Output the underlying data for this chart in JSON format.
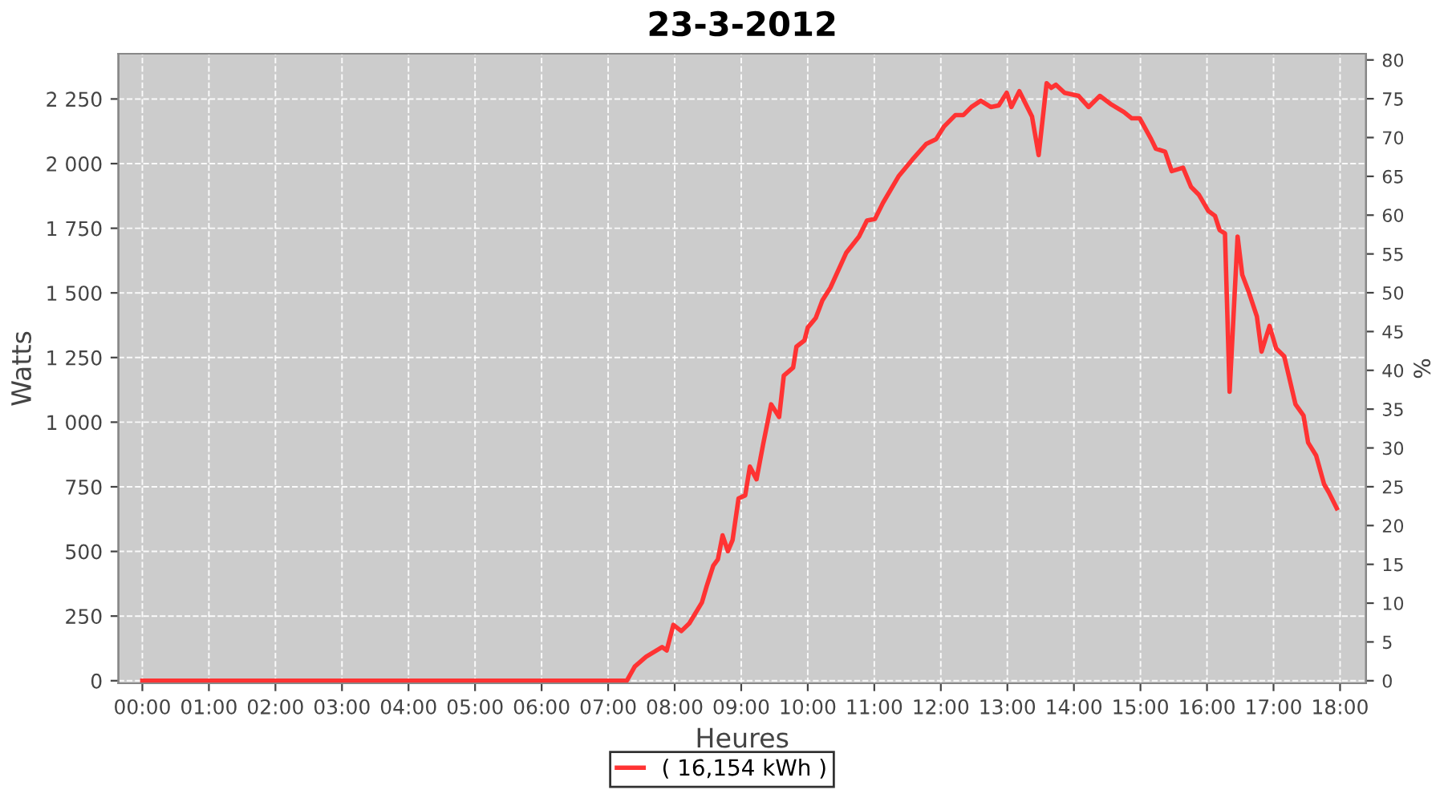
{
  "chart_data": {
    "type": "line",
    "title": "23-3-2012",
    "xlabel": "Heures",
    "ylabel": "Watts",
    "y2label": "%",
    "xlim": [
      -0.36,
      18.39
    ],
    "xticks": [
      {
        "value": 0,
        "label": "00:00"
      },
      {
        "value": 1,
        "label": "01:00"
      },
      {
        "value": 2,
        "label": "02:00"
      },
      {
        "value": 3,
        "label": "03:00"
      },
      {
        "value": 4,
        "label": "04:00"
      },
      {
        "value": 5,
        "label": "05:00"
      },
      {
        "value": 6,
        "label": "06:00"
      },
      {
        "value": 7,
        "label": "07:00"
      },
      {
        "value": 8,
        "label": "08:00"
      },
      {
        "value": 9,
        "label": "09:00"
      },
      {
        "value": 10,
        "label": "10:00"
      },
      {
        "value": 11,
        "label": "11:00"
      },
      {
        "value": 12,
        "label": "12:00"
      },
      {
        "value": 13,
        "label": "13:00"
      },
      {
        "value": 14,
        "label": "14:00"
      },
      {
        "value": 15,
        "label": "15:00"
      },
      {
        "value": 16,
        "label": "16:00"
      },
      {
        "value": 17,
        "label": "17:00"
      },
      {
        "value": 18,
        "label": "18:00"
      }
    ],
    "ylim": [
      -10,
      2425
    ],
    "yticks": [
      0,
      250,
      500,
      750,
      {
        "value": 1000,
        "label": "1 000"
      },
      {
        "value": 1250,
        "label": "1 250"
      },
      {
        "value": 1500,
        "label": "1 500"
      },
      {
        "value": 1750,
        "label": "1 750"
      },
      {
        "value": 2000,
        "label": "2 000"
      },
      {
        "value": 2250,
        "label": "2 250"
      }
    ],
    "y2lim": [
      -0.33,
      80.8
    ],
    "y2ticks": [
      0,
      5,
      10,
      15,
      20,
      25,
      30,
      35,
      40,
      45,
      50,
      55,
      60,
      65,
      70,
      75,
      80
    ],
    "grid": true,
    "legend": "bottom",
    "marker": "none",
    "line_style": "solid",
    "series": [
      {
        "name": "( 16,154 kWh )",
        "color": "#ff3333",
        "x": [
          0,
          7.28,
          7.4,
          7.57,
          7.81,
          7.88,
          7.98,
          8.1,
          8.22,
          8.41,
          8.48,
          8.58,
          8.65,
          8.72,
          8.8,
          8.87,
          8.96,
          9.06,
          9.13,
          9.23,
          9.33,
          9.45,
          9.57,
          9.64,
          9.78,
          9.83,
          9.95,
          10.0,
          10.12,
          10.22,
          10.34,
          10.58,
          10.77,
          10.89,
          11.01,
          11.13,
          11.37,
          11.57,
          11.78,
          11.93,
          12.05,
          12.22,
          12.34,
          12.46,
          12.6,
          12.75,
          12.87,
          12.99,
          13.06,
          13.18,
          13.37,
          13.47,
          13.59,
          13.66,
          13.73,
          13.86,
          14.07,
          14.22,
          14.39,
          14.55,
          14.75,
          14.87,
          14.99,
          15.16,
          15.23,
          15.37,
          15.47,
          15.64,
          15.76,
          15.88,
          16.02,
          16.12,
          16.19,
          16.27,
          16.34,
          16.46,
          16.53,
          16.63,
          16.75,
          16.82,
          16.94,
          17.04,
          17.16,
          17.33,
          17.45,
          17.52,
          17.64,
          17.76,
          17.83,
          17.95
        ],
        "values": [
          0,
          0,
          55,
          93,
          130,
          117,
          216,
          192,
          222,
          303,
          365,
          445,
          470,
          562,
          501,
          544,
          705,
          717,
          828,
          779,
          915,
          1069,
          1020,
          1180,
          1211,
          1292,
          1316,
          1366,
          1403,
          1471,
          1520,
          1656,
          1718,
          1780,
          1786,
          1848,
          1953,
          2015,
          2076,
          2095,
          2144,
          2188,
          2188,
          2219,
          2243,
          2219,
          2225,
          2274,
          2219,
          2280,
          2182,
          2033,
          2311,
          2293,
          2305,
          2274,
          2262,
          2219,
          2262,
          2231,
          2200,
          2175,
          2175,
          2095,
          2058,
          2046,
          1971,
          1984,
          1910,
          1879,
          1817,
          1798,
          1743,
          1730,
          1118,
          1718,
          1570,
          1502,
          1409,
          1273,
          1372,
          1285,
          1255,
          1069,
          1026,
          921,
          871,
          760,
          729,
          667
        ]
      }
    ]
  }
}
